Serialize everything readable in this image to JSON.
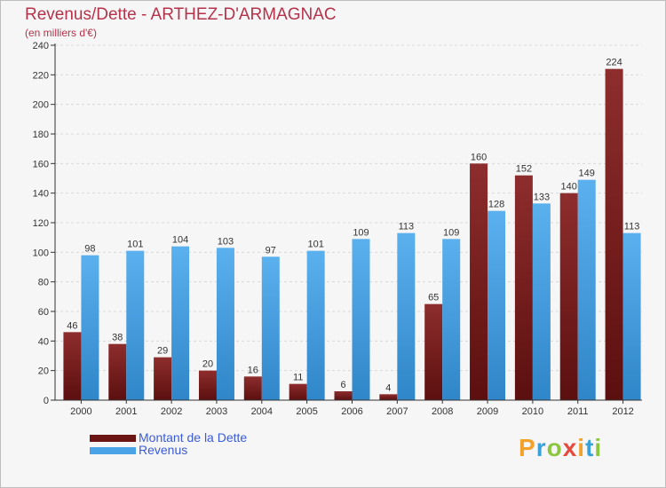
{
  "title": "Revenus/Dette - ARTHEZ-D'ARMAGNAC",
  "subtitle": "(en milliers d'€)",
  "brand": {
    "letters": [
      "P",
      "r",
      "o",
      "x",
      "i",
      "t",
      "i"
    ],
    "colors": [
      "#f2a12a",
      "#3aa1d8",
      "#8cc63f",
      "#e64a3c",
      "#f2a12a",
      "#3aa1d8",
      "#8cc63f"
    ]
  },
  "colors": {
    "dette": "#7a1e1e",
    "revenus": "#4aa3e6",
    "axis": "#333333",
    "grid": "#d9d9d9",
    "label": "#333333"
  },
  "chart_data": {
    "type": "bar",
    "title": "Revenus/Dette - ARTHEZ-D'ARMAGNAC",
    "subtitle": "(en milliers d'€)",
    "categories": [
      "2000",
      "2001",
      "2002",
      "2003",
      "2004",
      "2005",
      "2006",
      "2007",
      "2008",
      "2009",
      "2010",
      "2011",
      "2012"
    ],
    "series": [
      {
        "name": "Montant de la Dette",
        "values": [
          46,
          38,
          29,
          20,
          16,
          11,
          6,
          4,
          65,
          160,
          152,
          140,
          224
        ]
      },
      {
        "name": "Revenus",
        "values": [
          98,
          101,
          104,
          103,
          97,
          101,
          109,
          113,
          109,
          128,
          133,
          149,
          113
        ]
      }
    ],
    "yticks": [
      "0",
      "20",
      "40",
      "60",
      "80",
      "100",
      "120",
      "140",
      "160",
      "180",
      "200",
      "220",
      "240"
    ],
    "ylim": [
      0,
      240
    ],
    "grid": true,
    "legend": "bottom-left"
  }
}
